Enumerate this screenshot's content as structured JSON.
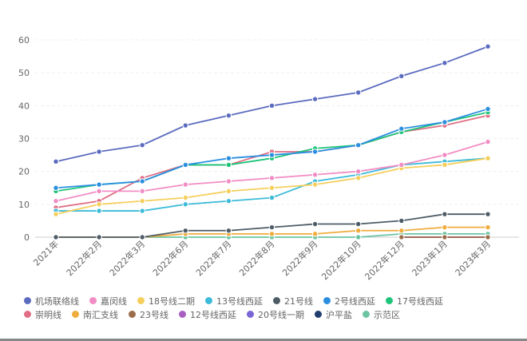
{
  "chart_data": {
    "type": "line",
    "title": "",
    "xlabel": "",
    "ylabel": "",
    "ylim": [
      0,
      60
    ],
    "yticks": [
      "0",
      "10",
      "20",
      "30",
      "40",
      "50",
      "60"
    ],
    "grid": true,
    "legend_placement": "bottom",
    "categories": [
      "2021年",
      "2022年2月",
      "2022年3月",
      "2022年6月",
      "2022年7月",
      "2022年8月",
      "2022年9月",
      "2022年10月",
      "2022年12月",
      "2023年1月",
      "2023年3月"
    ],
    "series": [
      {
        "name": "机场联络线",
        "color": "#5b6bbf",
        "values": [
          23,
          26,
          28,
          34,
          37,
          40,
          42,
          44,
          49,
          53,
          58
        ]
      },
      {
        "name": "嘉闵线",
        "color": "#f28cc4",
        "values": [
          11,
          14,
          14,
          16,
          17,
          18,
          19,
          20,
          22,
          25,
          29
        ]
      },
      {
        "name": "18号线二期",
        "color": "#f5cf5c",
        "values": [
          7,
          10,
          11,
          12,
          14,
          15,
          16,
          18,
          21,
          22,
          24
        ]
      },
      {
        "name": "13号线西延",
        "color": "#3dbbd9",
        "values": [
          8,
          8,
          8,
          10,
          11,
          12,
          17,
          19,
          22,
          23,
          24
        ]
      },
      {
        "name": "21号线",
        "color": "#4d5c66",
        "values": [
          0,
          0,
          0,
          2,
          2,
          3,
          4,
          4,
          5,
          7,
          7
        ]
      },
      {
        "name": "2号线西延",
        "color": "#2b8fe0",
        "values": [
          15,
          16,
          17,
          22,
          24,
          25,
          26,
          28,
          33,
          35,
          39
        ]
      },
      {
        "name": "17号线西延",
        "color": "#1fc47a",
        "values": [
          14,
          16,
          17,
          22,
          22,
          24,
          27,
          28,
          32,
          35,
          38
        ]
      },
      {
        "name": "崇明线",
        "color": "#e06f86",
        "values": [
          9,
          11,
          18,
          22,
          22,
          26,
          26,
          28,
          32,
          34,
          37
        ]
      },
      {
        "name": "南汇支线",
        "color": "#f0ac3c",
        "values": [
          0,
          0,
          0,
          1,
          1,
          1,
          1,
          2,
          2,
          3,
          3
        ]
      },
      {
        "name": "23号线",
        "color": "#9c6d4a",
        "values": [
          null,
          null,
          null,
          null,
          null,
          null,
          null,
          null,
          0,
          0,
          0
        ]
      },
      {
        "name": "12号线西延",
        "color": "#a95fbf",
        "values": [
          null,
          null,
          null,
          null,
          null,
          null,
          null,
          null,
          0,
          0,
          0
        ]
      },
      {
        "name": "20号线一期",
        "color": "#7a66d6",
        "values": [
          null,
          null,
          null,
          null,
          null,
          null,
          null,
          null,
          0,
          0,
          0
        ]
      },
      {
        "name": "沪平盐",
        "color": "#1f3d6e",
        "values": [
          null,
          null,
          null,
          null,
          null,
          null,
          null,
          null,
          0,
          0,
          0
        ]
      },
      {
        "name": "示范区",
        "color": "#6cc4a2",
        "values": [
          0,
          0,
          0,
          0,
          0,
          0,
          0,
          0,
          1,
          1,
          1
        ]
      }
    ]
  }
}
